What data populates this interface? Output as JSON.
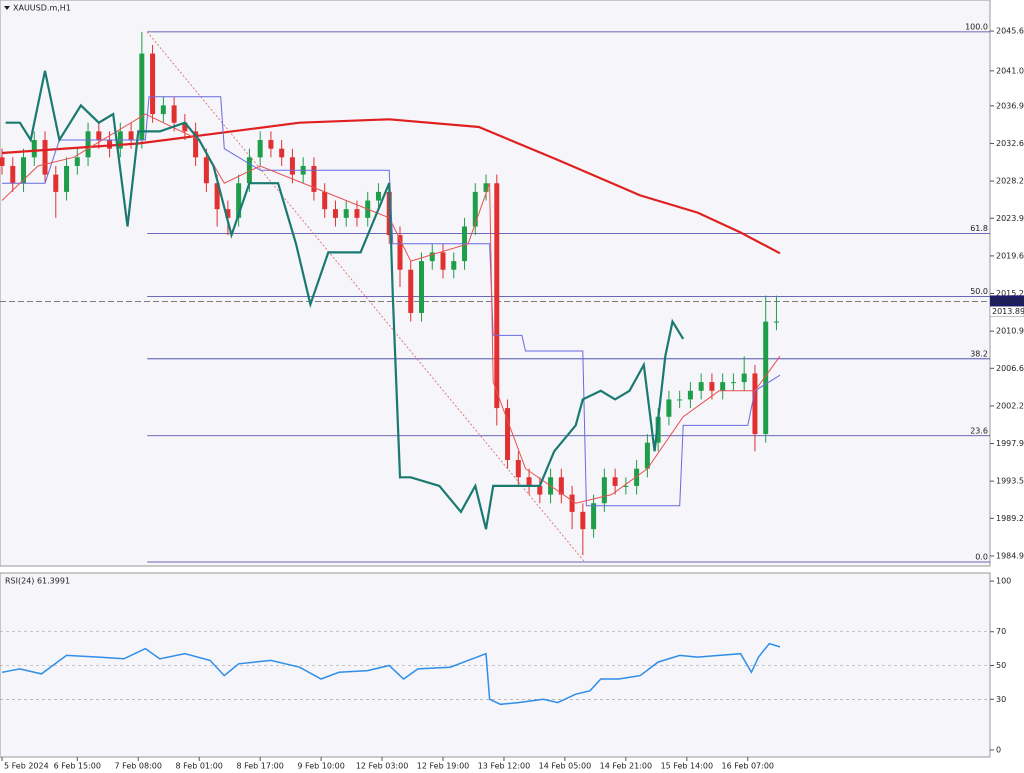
{
  "chart_data": [
    {
      "type": "candlestick",
      "title": "XAUUSD.m,H1",
      "xlim": [
        -0.56,
        275
      ],
      "ylim": [
        1983.74,
        2049.19
      ],
      "yticks": [
        {
          "value": 2045.6,
          "label": "2045.60"
        },
        {
          "value": 2041,
          "label": "2041.00"
        },
        2036.95,
        {
          "value": 2032.6,
          "label": "2032.60"
        },
        2028.25,
        2023.95,
        {
          "value": 2019.6,
          "label": "2019.60"
        },
        2015.25,
        {
          "value": 2010.9,
          "label": "2010.90"
        },
        {
          "value": 2006.6,
          "label": "2006.60"
        },
        2002.25,
        {
          "value": 1997.9,
          "label": "1997.90"
        },
        1993.55,
        1989.25,
        {
          "value": 1984.9,
          "label": "1984.90"
        }
      ],
      "xticks": [
        {
          "value": 0,
          "label": "5 Feb 2024"
        },
        {
          "value": 21,
          "label": "6 Feb 15:00"
        },
        {
          "value": 38,
          "label": "7 Feb 08:00"
        },
        {
          "value": 55,
          "label": "8 Feb 01:00"
        },
        {
          "value": 72,
          "label": "8 Feb 17:00"
        },
        {
          "value": 89,
          "label": "9 Feb 10:00"
        },
        {
          "value": 106,
          "label": "12 Feb 03:00"
        },
        {
          "value": 123,
          "label": "12 Feb 19:00"
        },
        {
          "value": 140,
          "label": "13 Feb 12:00"
        },
        {
          "value": 157,
          "label": "14 Feb 05:00"
        },
        {
          "value": 174,
          "label": "14 Feb 21:00"
        },
        {
          "value": 191,
          "label": "15 Feb 14:00"
        },
        {
          "value": 208,
          "label": "16 Feb 07:00"
        }
      ],
      "up_color": "#1f9e4a",
      "down_color": "#e03030",
      "x": [
        0,
        3,
        6,
        9,
        12,
        15,
        18,
        21,
        24,
        27,
        30,
        33,
        36,
        39,
        42,
        45,
        48,
        51,
        54,
        57,
        60,
        63,
        66,
        69,
        72,
        75,
        78,
        81,
        84,
        87,
        90,
        93,
        96,
        99,
        102,
        105,
        108,
        111,
        114,
        117,
        120,
        123,
        126,
        129,
        132,
        135,
        138,
        141,
        144,
        147,
        150,
        153,
        156,
        159,
        162,
        165,
        168,
        171,
        174,
        177,
        180,
        183,
        186,
        189,
        192,
        195,
        198,
        201,
        204,
        207,
        210,
        213,
        216
      ],
      "open": [
        2031,
        2030,
        2028,
        2031,
        2033,
        2029,
        2027,
        2030,
        2031,
        2034,
        2033,
        2032,
        2034,
        2033,
        2043,
        2036,
        2037,
        2035,
        2034,
        2031,
        2028,
        2025,
        2024,
        2028,
        2031,
        2033,
        2032,
        2031,
        2029,
        2030,
        2027,
        2025,
        2024,
        2025,
        2024,
        2026,
        2027,
        2022,
        2018,
        2013,
        2019,
        2020,
        2018,
        2019,
        2023,
        2027,
        2028,
        2002,
        1996,
        1994,
        1993,
        1992,
        1994,
        1992,
        1990,
        1988,
        1991,
        1994,
        1993,
        1993,
        1995,
        1998,
        2001,
        2003,
        2003,
        2004,
        2005,
        2004,
        2005,
        2005,
        2006,
        1999,
        2012
      ],
      "high": [
        2032,
        2031,
        2032,
        2034,
        2034,
        2030,
        2031,
        2032,
        2035,
        2035,
        2034,
        2035,
        2035,
        2045.5,
        2044,
        2038,
        2038,
        2036,
        2035,
        2032,
        2029,
        2026,
        2029,
        2032,
        2034,
        2034,
        2033,
        2032,
        2031,
        2031,
        2028,
        2026,
        2026,
        2026,
        2027,
        2028,
        2028,
        2023,
        2019,
        2020,
        2021,
        2021,
        2020,
        2024,
        2028,
        2029,
        2029,
        2003,
        1997,
        1995,
        1994,
        1995,
        1995,
        1993,
        1991,
        1992,
        1995,
        1995,
        1994,
        1996,
        1999,
        2002,
        2004,
        2004,
        2005,
        2006,
        2006,
        2006,
        2006,
        2008,
        2007,
        2015,
        2015
      ],
      "low": [
        2029,
        2027,
        2027,
        2030,
        2028,
        2024,
        2026,
        2029,
        2030,
        2032,
        2031,
        2031,
        2032,
        2032,
        2035,
        2035,
        2034,
        2033,
        2030,
        2027,
        2023,
        2022,
        2023,
        2027,
        2030,
        2031,
        2030,
        2028,
        2028,
        2026,
        2024,
        2023,
        2023,
        2023,
        2023,
        2025,
        2021,
        2016,
        2012,
        2012,
        2018,
        2017,
        2017,
        2018,
        2022,
        2026,
        2000,
        1995,
        1993,
        1992,
        1991,
        1991,
        1991,
        1988,
        1985,
        1987,
        1990,
        1992,
        1992,
        1992,
        1994,
        1997,
        2000,
        2002,
        2002,
        2003,
        2003,
        2003,
        2004,
        2004,
        1997,
        1998,
        2011
      ],
      "close": [
        2030,
        2028,
        2031,
        2033,
        2029,
        2027,
        2030,
        2031,
        2034,
        2033,
        2032,
        2034,
        2033,
        2043,
        2036,
        2037,
        2035,
        2034,
        2031,
        2028,
        2025,
        2024,
        2028,
        2031,
        2033,
        2032,
        2031,
        2029,
        2030,
        2027,
        2025,
        2024,
        2025,
        2024,
        2026,
        2027,
        2022,
        2018,
        2013,
        2019,
        2020,
        2018,
        2019,
        2023,
        2027,
        2028,
        2002,
        1996,
        1994,
        1993,
        1992,
        1994,
        1992,
        1990,
        1988,
        1991,
        1994,
        1993,
        1993,
        1995,
        1998,
        2001,
        2003,
        2003,
        2004,
        2005,
        2004,
        2005,
        2005,
        2006,
        1999,
        2012,
        2012
      ],
      "lines": [
        {
          "color": "#e02020",
          "width": 2.2,
          "x": [
            0,
            38,
            83,
            108,
            133,
            155,
            178,
            194,
            206,
            217
          ],
          "values": [
            2031.5,
            2032.6,
            2035,
            2035.4,
            2034.5,
            2030.7,
            2026.6,
            2024.6,
            2022.3,
            2019.9
          ]
        },
        {
          "color": "#6a6ae0",
          "width": 1,
          "x": [
            0,
            12,
            16,
            40,
            41,
            61,
            62,
            72,
            108,
            109,
            136,
            137,
            145,
            146,
            162,
            163,
            189,
            190,
            208,
            210,
            217
          ],
          "values": [
            2028,
            2028,
            2033,
            2033,
            2038,
            2038,
            2032,
            2029.5,
            2029.5,
            2021,
            2021,
            2010.4,
            2010.4,
            2008.6,
            2008.6,
            1990.7,
            1990.7,
            2000,
            2000,
            2004,
            2005.8
          ]
        },
        {
          "color": "#e85050",
          "width": 1,
          "x": [
            0,
            10,
            20,
            40,
            55,
            62,
            72,
            90,
            108,
            114,
            130,
            136,
            137,
            146,
            160,
            170,
            180,
            190,
            200,
            210,
            217
          ],
          "values": [
            2026,
            2030,
            2031,
            2036,
            2033,
            2028,
            2030,
            2027,
            2024,
            2019,
            2021,
            2028,
            2005,
            1995,
            1991,
            1992,
            1995,
            2001,
            2004,
            2004,
            2008
          ]
        },
        {
          "color": "#1a7a70",
          "width": 2.2,
          "x": [
            1,
            5,
            8,
            12,
            16,
            22,
            27,
            31,
            35,
            38,
            44,
            51,
            55,
            59,
            64,
            69,
            77,
            82,
            86,
            91,
            100,
            108,
            109,
            111,
            114,
            122,
            128,
            132,
            135,
            137,
            144,
            150,
            154,
            160,
            162,
            167,
            171,
            175,
            179,
            182,
            185,
            187,
            190
          ],
          "values": [
            2035,
            2035,
            2033,
            2041,
            2033,
            2037,
            2035,
            2036,
            2023,
            2034,
            2034,
            2035,
            2033,
            2030,
            2022,
            2028,
            2028,
            2021,
            2014,
            2020,
            2020,
            2028,
            2015,
            1994,
            1994,
            1993,
            1990,
            1993,
            1988,
            1993,
            1993,
            1993,
            1997,
            2000,
            2003,
            2004,
            2003,
            2004,
            2007,
            1997,
            2008,
            2012,
            2010
          ]
        }
      ],
      "levels_color": "#3a3aa0",
      "levels_start": 40.5,
      "levels": [
        {
          "value": 2045.5,
          "label": "100.0"
        },
        {
          "value": 2022.2,
          "label": "61.8"
        },
        {
          "value": 2014.9,
          "label": "50.0"
        },
        {
          "value": 2007.7,
          "label": "38.2"
        },
        {
          "value": 1998.8,
          "label": "23.6"
        },
        {
          "value": 1984.2,
          "label": "0.0"
        }
      ],
      "trend": {
        "x": [
          40.5,
          162.5
        ],
        "values": [
          2045.5,
          1984.2
        ],
        "color": "#e06060"
      },
      "ask": 2014.33,
      "bid": 2013.89
    },
    {
      "type": "line",
      "label": "RSI(24) 61.3991",
      "xlim": [
        -0.56,
        275
      ],
      "ylim": [
        -4.2,
        104.8
      ],
      "yticks": [
        100,
        70,
        50,
        30,
        0
      ],
      "levels": [
        70,
        50,
        30
      ],
      "color": "#2f8ee8",
      "x": [
        0,
        5,
        11,
        18,
        27,
        34,
        40,
        44,
        51,
        58,
        62,
        66,
        75,
        83,
        89,
        94,
        102,
        108,
        112,
        116,
        125,
        130,
        135,
        136,
        139,
        144,
        151,
        155,
        160,
        164,
        167,
        172,
        178,
        183,
        189,
        194,
        200,
        206,
        209,
        211,
        214,
        217
      ],
      "values": [
        46,
        48,
        45,
        56,
        55,
        54,
        60,
        54,
        57,
        53,
        44,
        51,
        53,
        49,
        42,
        46,
        47,
        50,
        42,
        48,
        49,
        53,
        57,
        30,
        27,
        28,
        30,
        28,
        33,
        35,
        42,
        42,
        44,
        52,
        56,
        55,
        56,
        57,
        46,
        55,
        63,
        61
      ]
    }
  ]
}
